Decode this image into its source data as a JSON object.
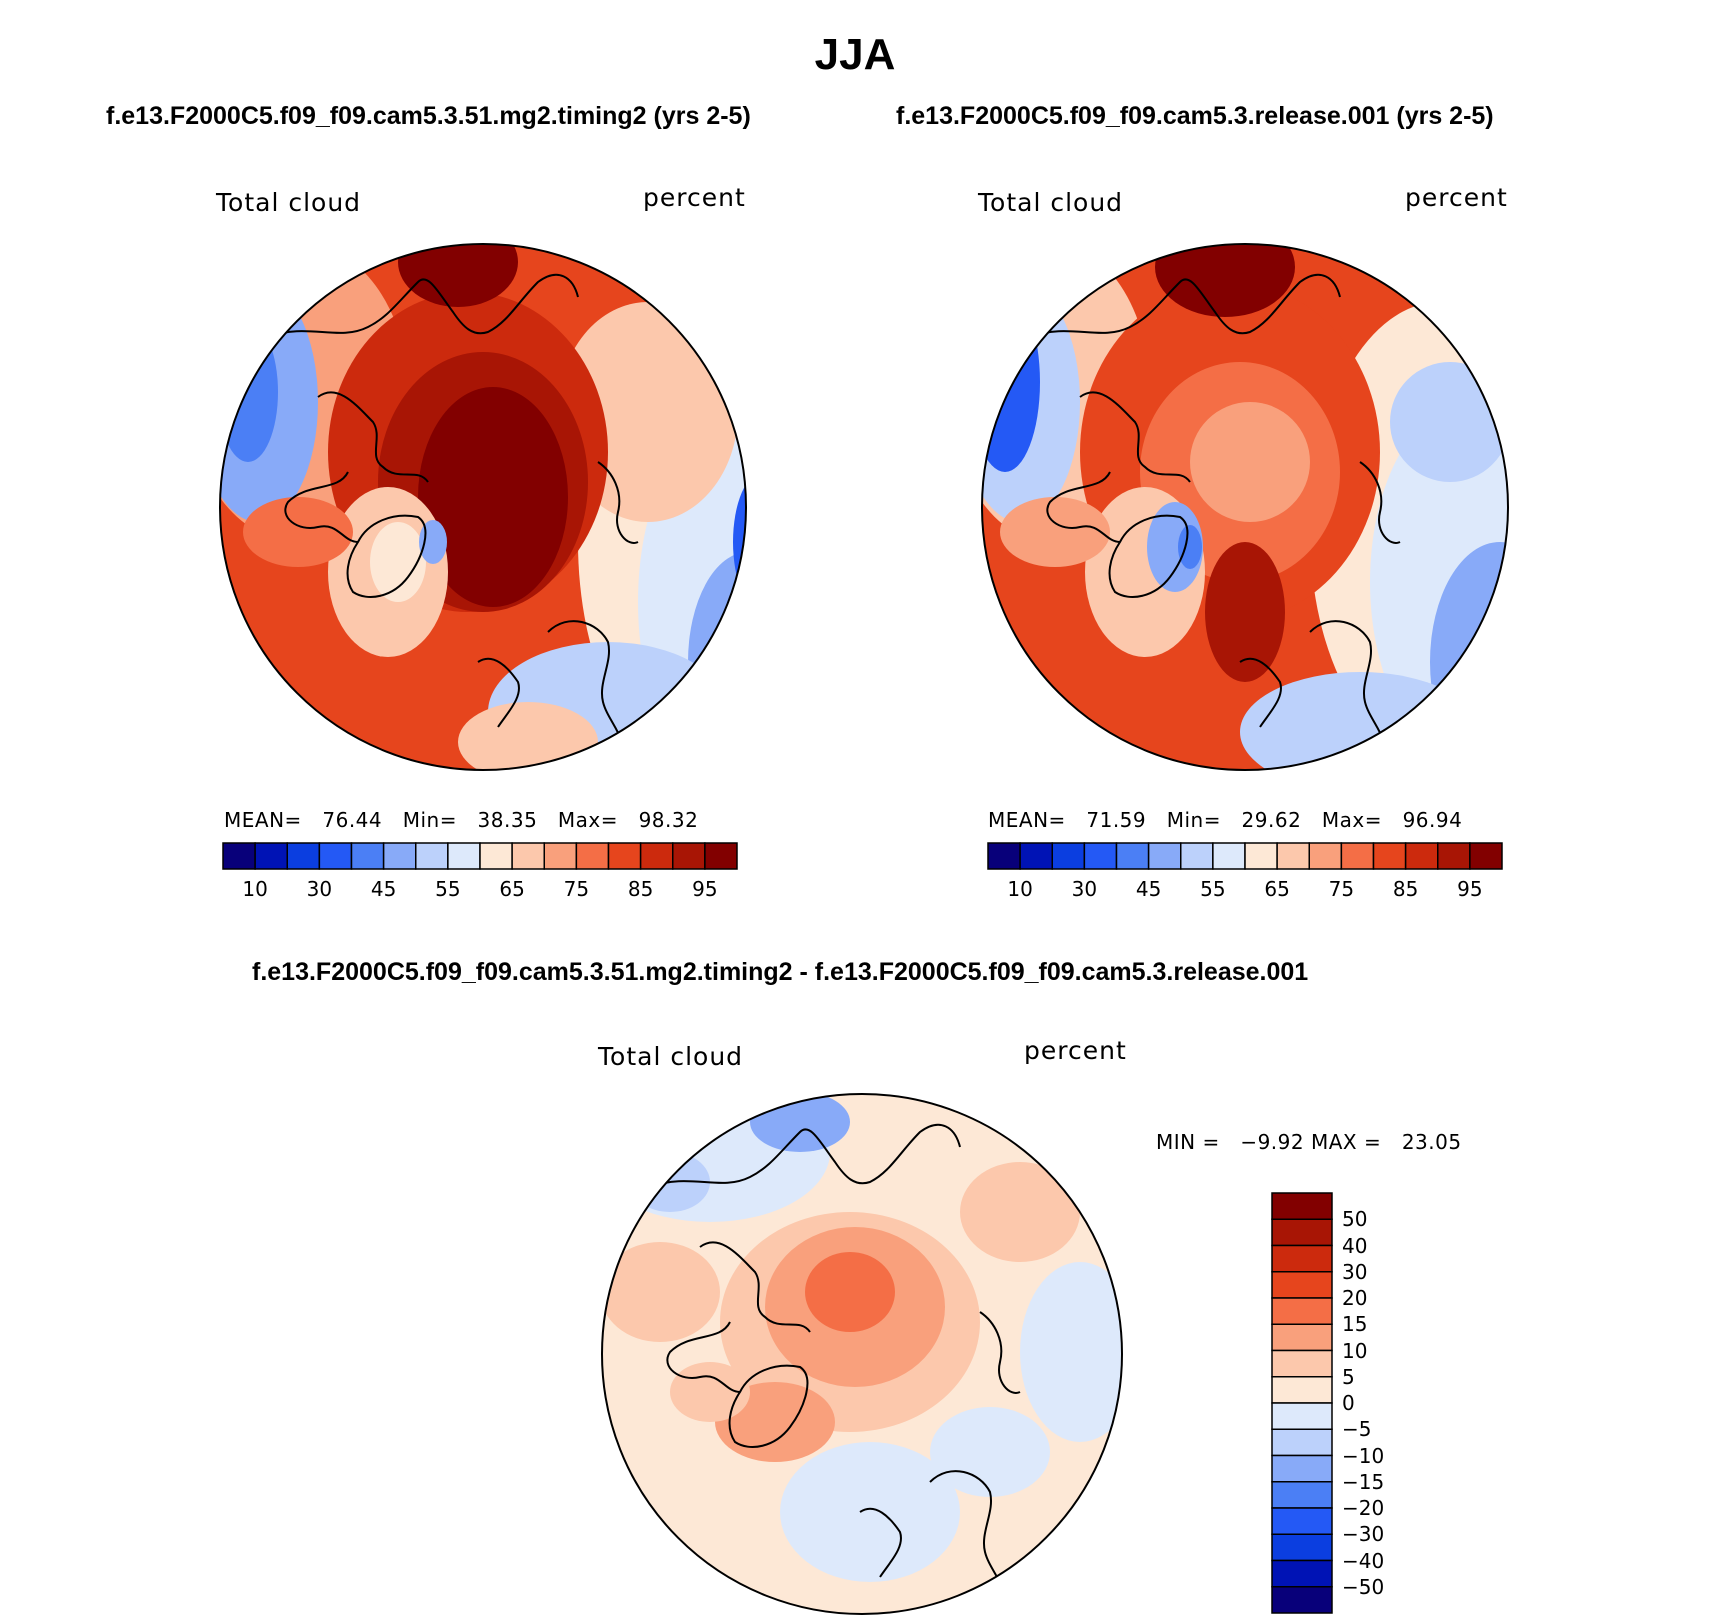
{
  "title": "JJA",
  "panels": [
    {
      "case_title": "f.e13.F2000C5.f09_f09.cam5.3.51.mg2.timing2 (yrs 2-5)",
      "variable": "Total cloud",
      "units": "percent",
      "stats": {
        "mean_label": "MEAN=",
        "mean": "76.44",
        "min_label": "Min=",
        "min": "38.35",
        "max_label": "Max=",
        "max": "98.32"
      }
    },
    {
      "case_title": "f.e13.F2000C5.f09_f09.cam5.3.release.001 (yrs 2-5)",
      "variable": "Total cloud",
      "units": "percent",
      "stats": {
        "mean_label": "MEAN=",
        "mean": "71.59",
        "min_label": "Min=",
        "min": "29.62",
        "max_label": "Max=",
        "max": "96.94"
      }
    },
    {
      "case_title": "f.e13.F2000C5.f09_f09.cam5.3.51.mg2.timing2 - f.e13.F2000C5.f09_f09.cam5.3.release.001",
      "variable": "Total cloud",
      "units": "percent",
      "stats": {
        "min_label": "MIN =",
        "min": "−9.92",
        "max_label": "MAX =",
        "max": "23.05"
      }
    }
  ],
  "colorbar_abs": {
    "ticks": [
      "10",
      "30",
      "45",
      "55",
      "65",
      "75",
      "85",
      "95"
    ],
    "colors": [
      "#08007a",
      "#0013b5",
      "#0b3ee0",
      "#2459f5",
      "#4b7ff5",
      "#88aaf8",
      "#bcd1fb",
      "#dde9fb",
      "#fde8d6",
      "#fcc8ac",
      "#f9a07c",
      "#f46e46",
      "#e6451d",
      "#cc2a0d",
      "#a81505",
      "#820000"
    ]
  },
  "colorbar_diff": {
    "ticks": [
      "50",
      "40",
      "30",
      "20",
      "15",
      "10",
      "5",
      "0",
      "−5",
      "−10",
      "−15",
      "−20",
      "−30",
      "−40",
      "−50"
    ],
    "colors": [
      "#820000",
      "#a81505",
      "#cc2a0d",
      "#e6451d",
      "#f46e46",
      "#f9a07c",
      "#fcc8ac",
      "#fde8d6",
      "#dde9fb",
      "#bcd1fb",
      "#88aaf8",
      "#4b7ff5",
      "#2459f5",
      "#0b3ee0",
      "#0013b5",
      "#08007a"
    ]
  }
}
